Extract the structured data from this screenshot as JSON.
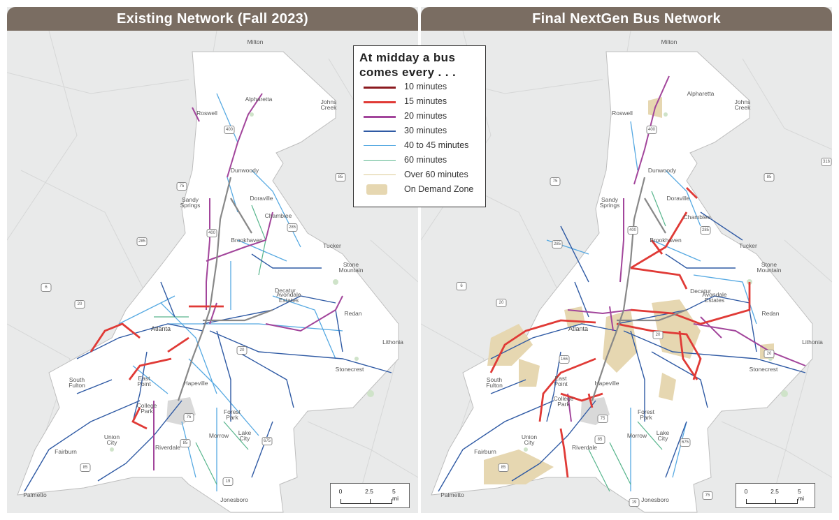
{
  "panels": {
    "left_title": "Existing Network (Fall 2023)",
    "right_title": "Final NextGen Bus Network"
  },
  "legend": {
    "title_line1": "At midday a bus",
    "title_line2": "comes every . . .",
    "items": [
      {
        "label": "10 minutes",
        "color": "#8b1a1f"
      },
      {
        "label": "15 minutes",
        "color": "#e03a36"
      },
      {
        "label": "20 minutes",
        "color": "#a2459b"
      },
      {
        "label": "30 minutes",
        "color": "#2f5aa4"
      },
      {
        "label": "40 to 45 minutes",
        "color": "#56a9e2"
      },
      {
        "label": "60 minutes",
        "color": "#57b58c"
      },
      {
        "label": "Over 60 minutes",
        "color": "#dcc993"
      },
      {
        "label": "On Demand Zone",
        "color": "#e6d7b1"
      }
    ]
  },
  "places": {
    "milton": "Milton",
    "alpharetta": "Alpharetta",
    "roswell": "Roswell",
    "johns": "Johns",
    "creek": "Creek",
    "dunwoody": "Dunwoody",
    "sandy": "Sandy",
    "springs": "Springs",
    "doraville": "Doraville",
    "chamblee": "Chamblee",
    "brookhaven": "Brookhaven",
    "tucker": "Tucker",
    "stone": "Stone",
    "mountain": "Mountain",
    "decatur": "Decatur",
    "avondale": "Avondale",
    "estates": "Estates",
    "redan": "Redan",
    "lithonia": "Lithonia",
    "stonecrest": "Stonecrest",
    "atlanta": "Atlanta",
    "south": "South",
    "fulton": "Fulton",
    "east": "East",
    "point": "Point",
    "hapeville": "Hapeville",
    "college": "College",
    "park": "Park",
    "forest": "Forest",
    "forest_park": "Park",
    "union": "Union",
    "city": "City",
    "lake": "Lake",
    "lake_city": "City",
    "morrow": "Morrow",
    "riverdale": "Riverdale",
    "fairburn": "Fairburn",
    "palmetto": "Palmetto",
    "jonesboro": "Jonesboro"
  },
  "highways": [
    "400",
    "75",
    "85",
    "285",
    "20",
    "675",
    "19",
    "316",
    "6",
    "166"
  ],
  "scale": {
    "t0": "0",
    "t1": "2.5",
    "t2": "5 mi"
  }
}
